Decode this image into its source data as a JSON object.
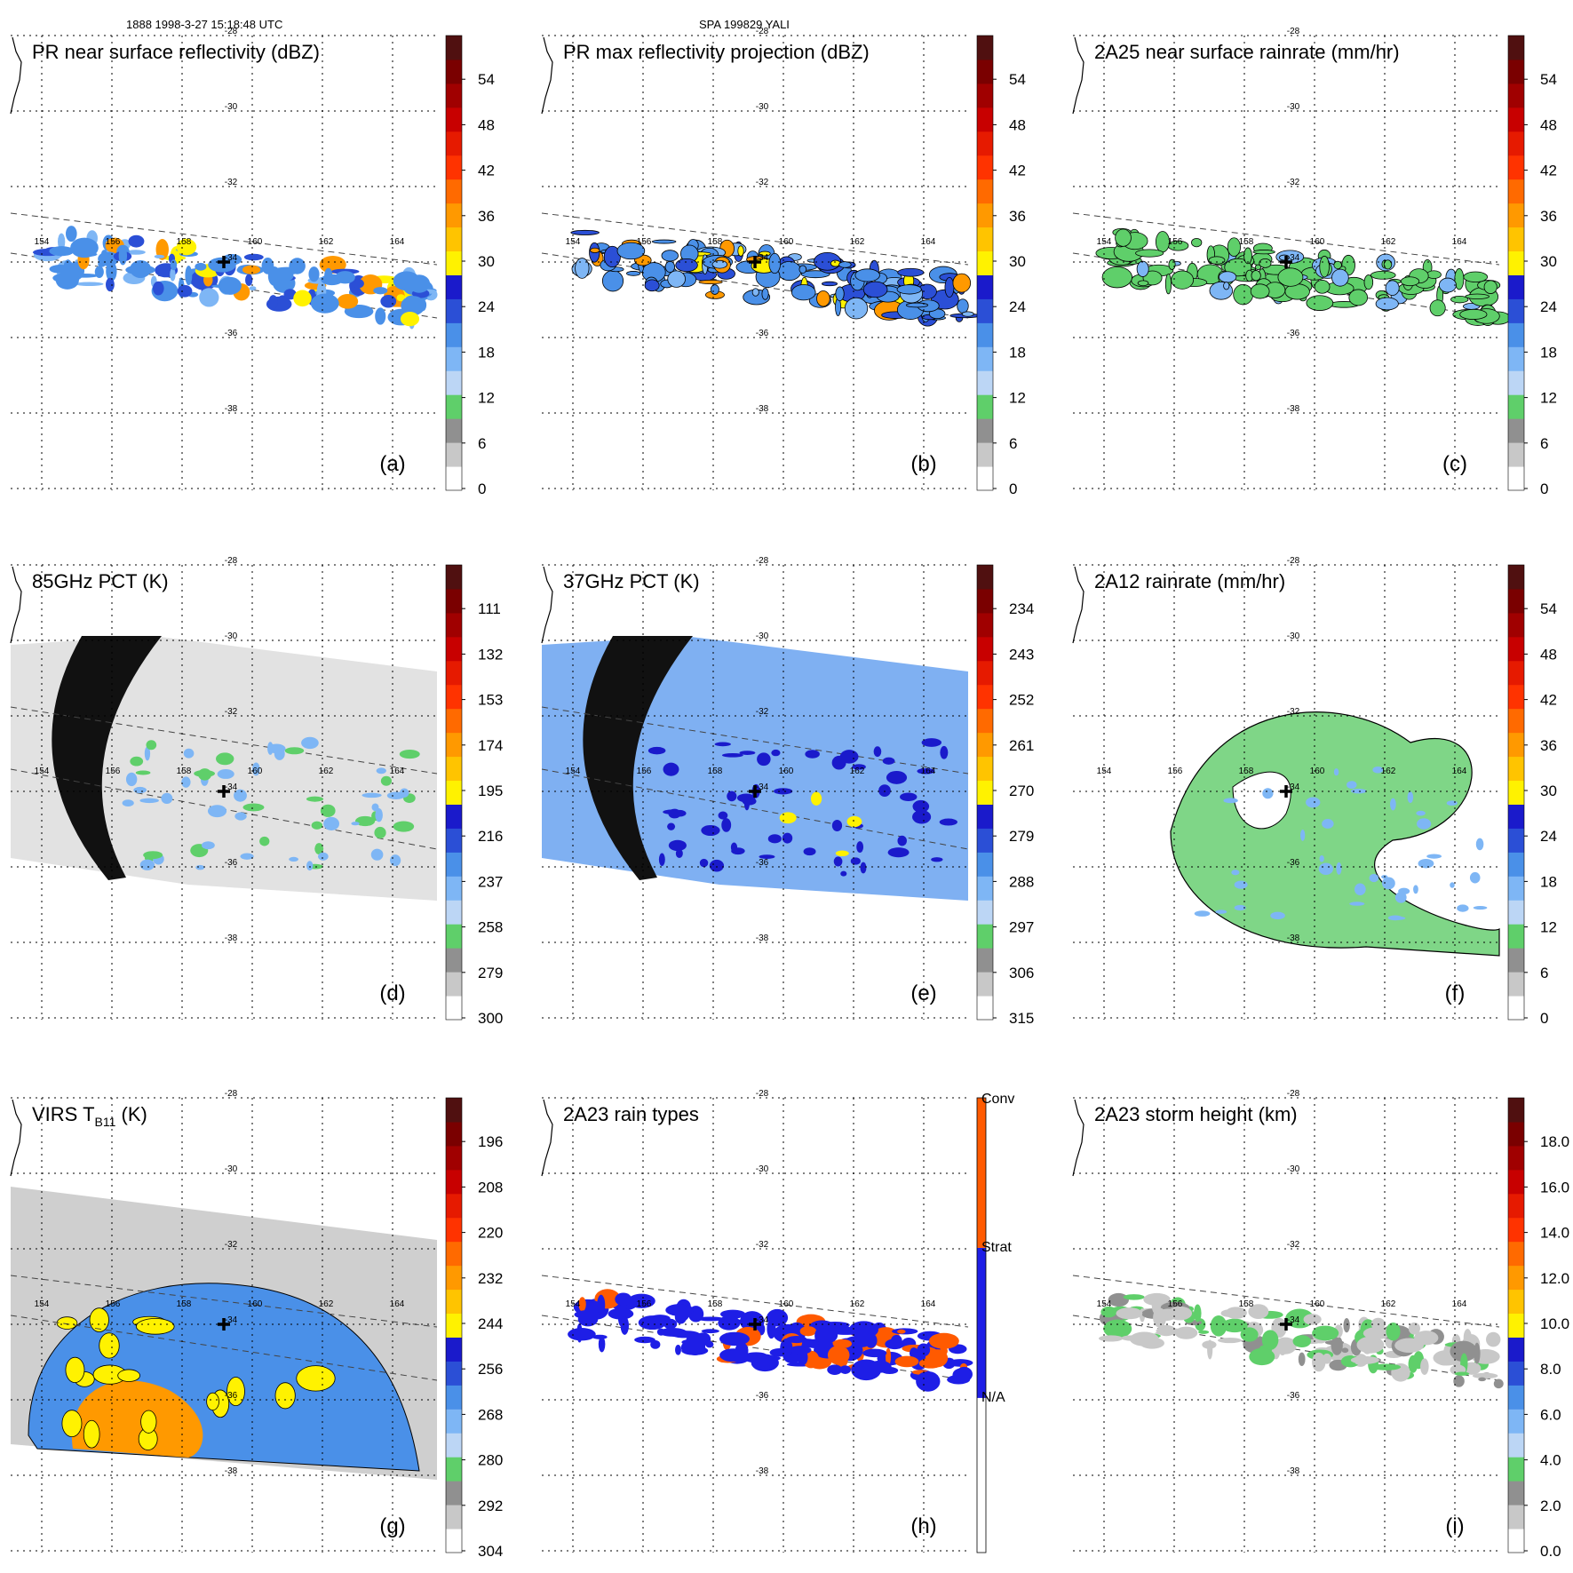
{
  "header": {
    "left": "1888 1998-3-27 15:18:48 UTC",
    "center": "SPA 199829 YALI"
  },
  "grid": {
    "lat_labels": [
      "-28",
      "-30",
      "-32",
      "-34",
      "-36",
      "-38"
    ],
    "lon_labels": [
      "154",
      "156",
      "158",
      "160",
      "162",
      "164"
    ]
  },
  "panels": [
    {
      "title": "PR near surface reflectivity (dBZ)",
      "letter": "(a)",
      "type": "swath_narrow",
      "colorbar": [
        "0",
        "6",
        "12",
        "18",
        "24",
        "30",
        "36",
        "42",
        "48",
        "54"
      ]
    },
    {
      "title": "PR max reflectivity projection (dBZ)",
      "letter": "(b)",
      "type": "swath_narrow",
      "colorbar": [
        "0",
        "6",
        "12",
        "18",
        "24",
        "30",
        "36",
        "42",
        "48",
        "54"
      ]
    },
    {
      "title": "2A25 near surface rainrate (mm/hr)",
      "letter": "(c)",
      "type": "swath_narrow",
      "colorbar": [
        "0",
        "6",
        "12",
        "18",
        "24",
        "30",
        "36",
        "42",
        "48",
        "54"
      ]
    },
    {
      "title": "85GHz PCT (K)",
      "letter": "(d)",
      "type": "swath_wide",
      "colorbar": [
        "300",
        "279",
        "258",
        "237",
        "216",
        "195",
        "174",
        "153",
        "132",
        "111"
      ]
    },
    {
      "title": "37GHz PCT (K)",
      "letter": "(e)",
      "type": "swath_wide",
      "colorbar": [
        "315",
        "306",
        "297",
        "288",
        "279",
        "270",
        "261",
        "252",
        "243",
        "234"
      ]
    },
    {
      "title": "2A12 rainrate (mm/hr)",
      "letter": "(f)",
      "type": "rain_field",
      "colorbar": [
        "0",
        "6",
        "12",
        "18",
        "24",
        "30",
        "36",
        "42",
        "48",
        "54"
      ]
    },
    {
      "title": "VIRS T",
      "title_sub": "B11",
      "title_suffix": " (K)",
      "letter": "(g)",
      "type": "virs",
      "colorbar": [
        "304",
        "292",
        "280",
        "268",
        "256",
        "244",
        "232",
        "220",
        "208",
        "196"
      ]
    },
    {
      "title": "2A23 rain types",
      "letter": "(h)",
      "type": "swath_types",
      "colorbar": [
        "N/A",
        "Strat",
        "Conv"
      ]
    },
    {
      "title": "2A23 storm height (km)",
      "letter": "(i)",
      "type": "swath_narrow",
      "colorbar": [
        "0.0",
        "2.0",
        "4.0",
        "6.0",
        "8.0",
        "10.0",
        "12.0",
        "14.0",
        "16.0",
        "18.0"
      ]
    }
  ],
  "colors": {
    "bar10": [
      "#ffffff",
      "#c8c8c8",
      "#909090",
      "#5fcf6a",
      "#bcd6f5",
      "#7eb6f5",
      "#4a90e8",
      "#2b4fd6",
      "#1a1acb",
      "#fff200",
      "#ffc400",
      "#ff9900",
      "#ff6a00",
      "#ff3300",
      "#e61a00",
      "#c80000",
      "#a00000",
      "#7a0000",
      "#501010"
    ],
    "types": [
      "#ffffff",
      "#1e1ee6",
      "#ff5a00"
    ]
  }
}
